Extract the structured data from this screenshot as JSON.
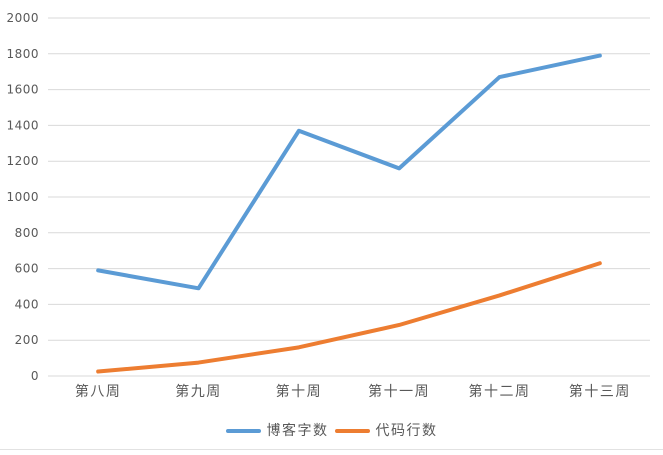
{
  "chart_data": {
    "type": "line",
    "categories": [
      "第八周",
      "第九周",
      "第十周",
      "第十一周",
      "第十二周",
      "第十三周"
    ],
    "series": [
      {
        "name": "博客字数",
        "values": [
          590,
          490,
          1370,
          1160,
          1670,
          1790
        ],
        "color": "#5B9BD5"
      },
      {
        "name": "代码行数",
        "values": [
          25,
          75,
          160,
          285,
          450,
          630
        ],
        "color": "#ED7D31"
      }
    ],
    "ylim": [
      0,
      2000
    ],
    "yticks": [
      0,
      200,
      400,
      600,
      800,
      1000,
      1200,
      1400,
      1600,
      1800,
      2000
    ],
    "grid": true,
    "legend_position": "bottom"
  },
  "colors": {
    "gridline": "#D9D9D9",
    "axis_text": "#595959",
    "background": "#FFFFFF"
  }
}
